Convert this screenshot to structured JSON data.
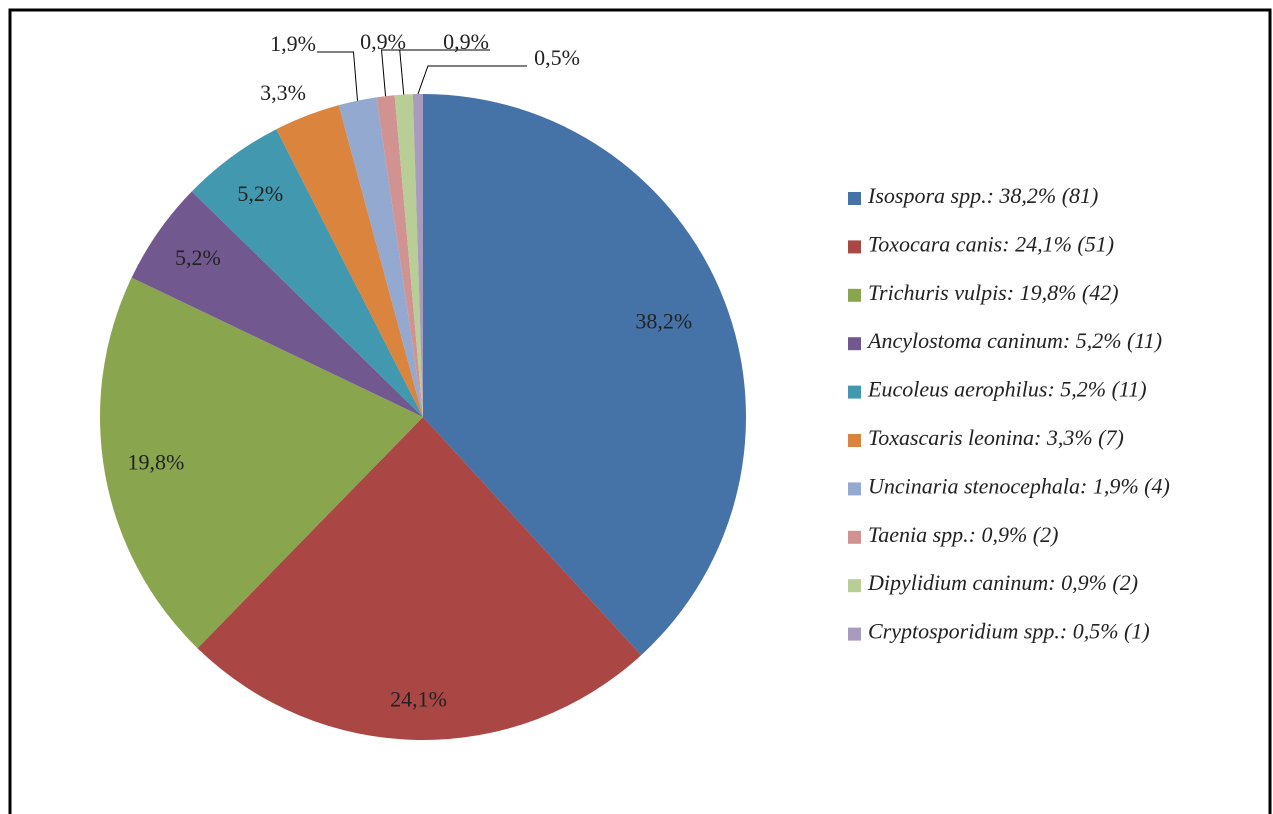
{
  "chart_data": {
    "type": "pie",
    "categories": [
      "Isospora spp.: 38,2% (81)",
      "Toxocara canis: 24,1% (51)",
      "Trichuris vulpis: 19,8% (42)",
      "Ancylostoma caninum: 5,2% (11)",
      "Eucoleus aerophilus: 5,2% (11)",
      "Toxascaris leonina: 3,3% (7)",
      "Uncinaria stenocephala: 1,9% (4)",
      "Taenia spp.: 0,9% (2)",
      "Dipylidium caninum: 0,9% (2)",
      "Cryptosporidium spp.: 0,5% (1)"
    ],
    "values": [
      38.2,
      24.1,
      19.8,
      5.2,
      5.2,
      3.3,
      1.9,
      0.9,
      0.9,
      0.5
    ],
    "value_labels": [
      "38,2%",
      "24,1%",
      "19,8%",
      "5,2%",
      "5,2%",
      "3,3%",
      "1,9%",
      "0,9%",
      "0,9%",
      "0,5%"
    ],
    "colors": [
      "#4572a7",
      "#aa4643",
      "#89a54e",
      "#71588f",
      "#4198af",
      "#db843d",
      "#93a9cf",
      "#d19392",
      "#b9cd96",
      "#a99bbd"
    ],
    "legend": "right"
  }
}
